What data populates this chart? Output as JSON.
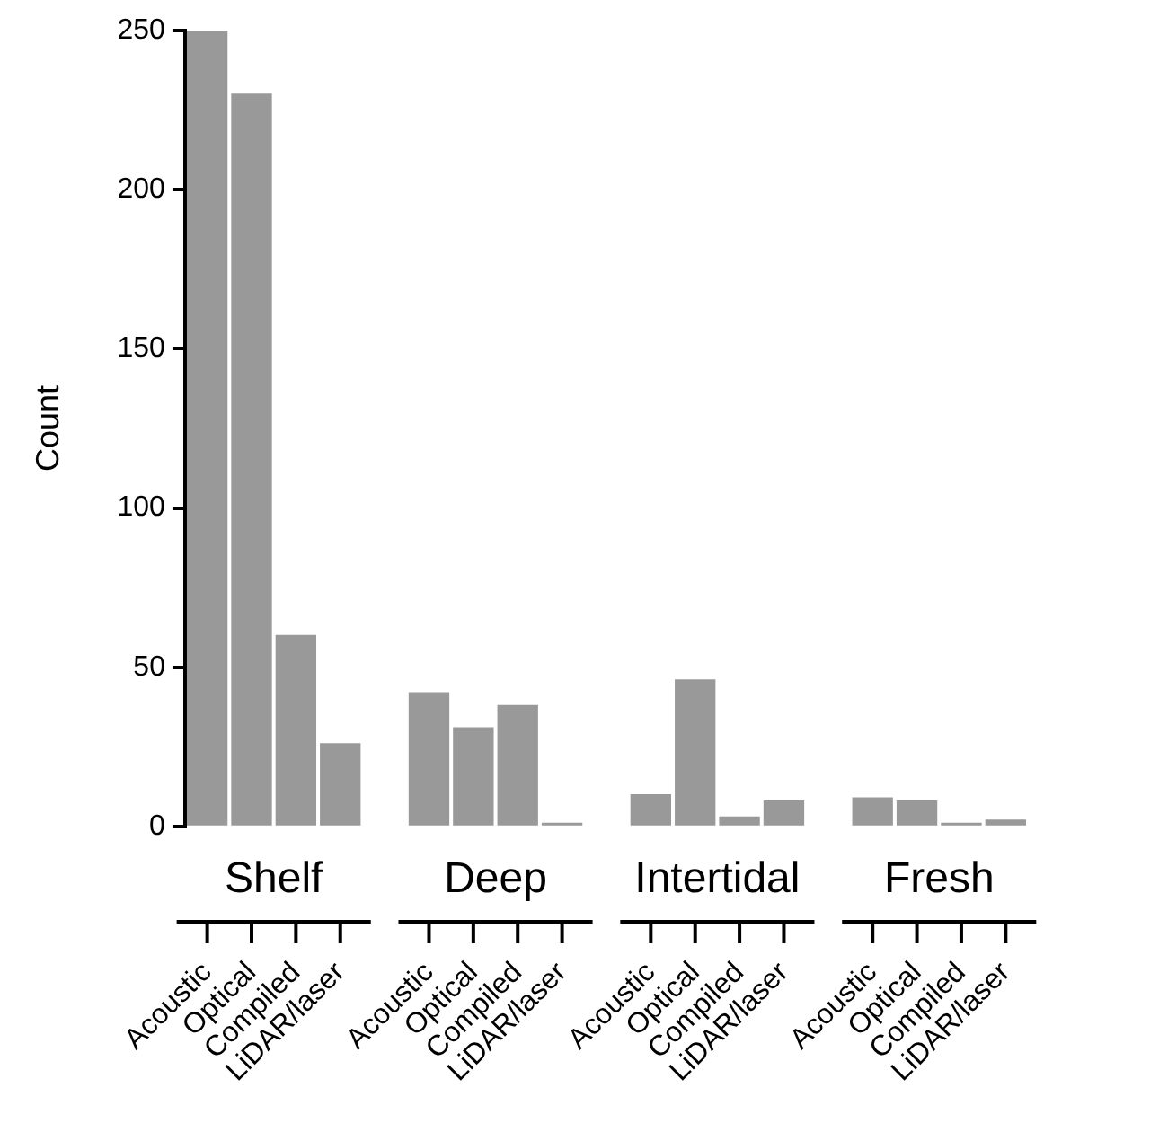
{
  "chart_data": {
    "type": "bar",
    "ylabel": "Count",
    "categories": [
      "Acoustic",
      "Optical",
      "Compiled",
      "LiDAR/laser",
      null,
      "Acoustic",
      "Optical",
      "Compiled",
      "LiDAR/laser",
      null,
      "Acoustic",
      "Optical",
      "Compiled",
      "LiDAR/laser",
      null,
      "Acoustic",
      "Optical",
      "Compiled",
      "LiDAR/laser"
    ],
    "values": [
      250,
      230,
      60,
      26,
      null,
      42,
      31,
      38,
      1,
      null,
      10,
      46,
      3,
      8,
      null,
      9,
      8,
      1,
      2
    ],
    "color": "#999999",
    "ylim": [
      0,
      250
    ],
    "yticks": [
      0,
      50,
      100,
      150,
      200,
      250
    ],
    "annotations": [
      "Shelf",
      "Deep",
      "Intertidal",
      "Fresh"
    ],
    "grid": false,
    "legend": false
  }
}
